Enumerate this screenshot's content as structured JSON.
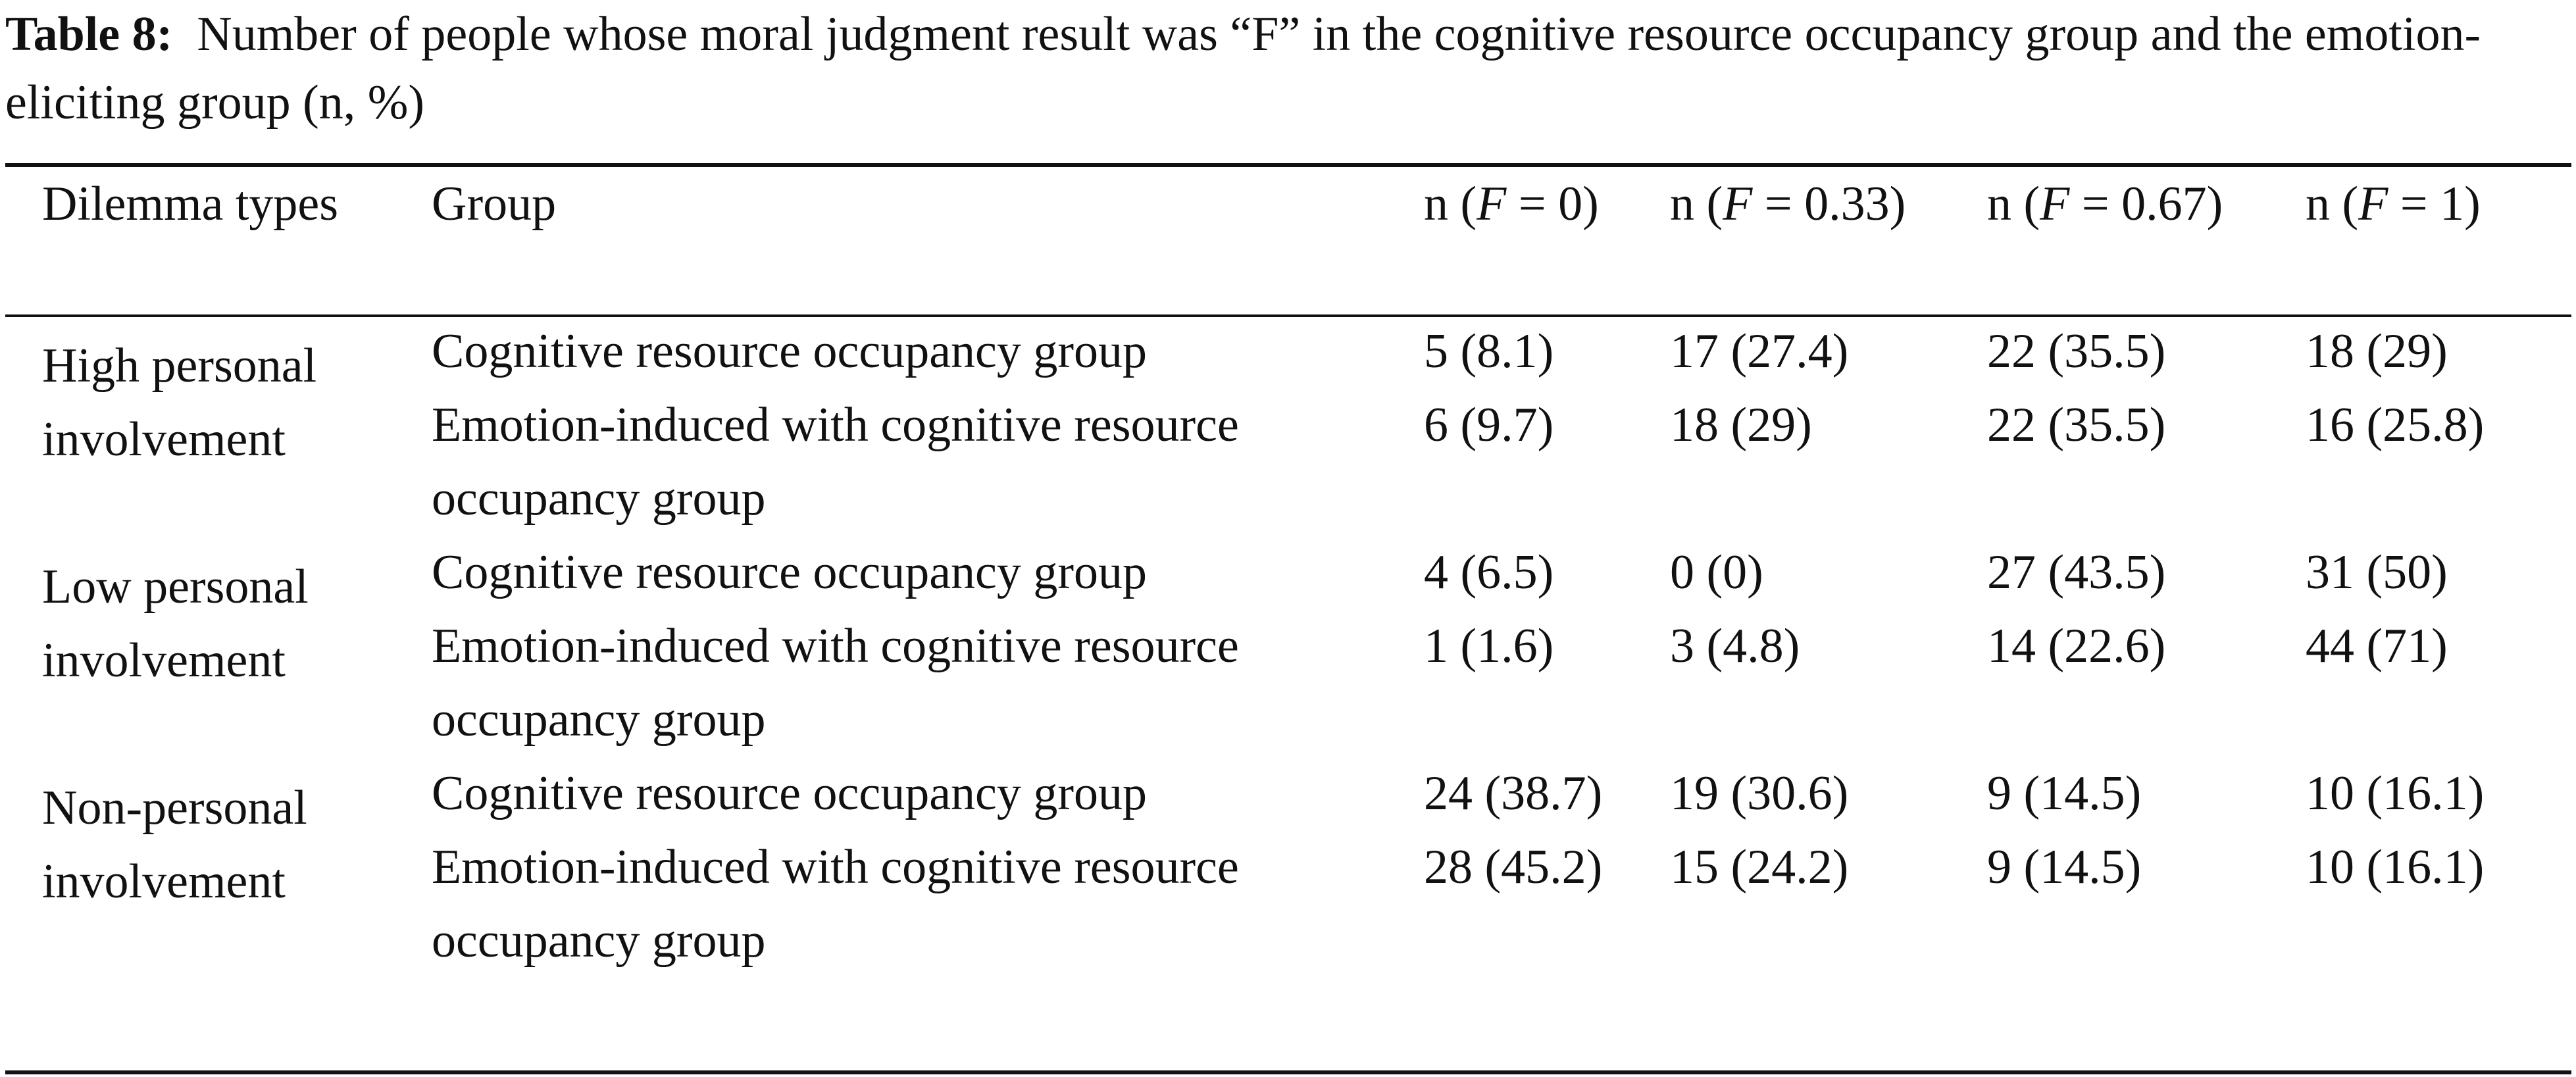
{
  "caption": {
    "label": "Table 8:",
    "text": "Number of people whose moral judgment result was “F” in the cognitive resource occupancy group and the emotion-eliciting group (n, %)"
  },
  "table": {
    "headers": {
      "dilemma": "Dilemma types",
      "group": "Group",
      "f0": "n (F = 0)",
      "f033": "n (F = 0.33)",
      "f067": "n (F = 0.67)",
      "f1": "n (F = 1)"
    },
    "sections": [
      {
        "dilemma": "High personal involvement",
        "rows": [
          {
            "group": "Cognitive resource occupancy group",
            "f0": "5 (8.1)",
            "f033": "17 (27.4)",
            "f067": "22 (35.5)",
            "f1": "18 (29)"
          },
          {
            "group": "Emotion-induced with cognitive resource occupancy group",
            "f0": "6 (9.7)",
            "f033": "18 (29)",
            "f067": "22 (35.5)",
            "f1": "16 (25.8)"
          }
        ]
      },
      {
        "dilemma": "Low personal involvement",
        "rows": [
          {
            "group": "Cognitive resource occupancy group",
            "f0": "4 (6.5)",
            "f033": "0 (0)",
            "f067": "27 (43.5)",
            "f1": "31 (50)"
          },
          {
            "group": "Emotion-induced with cognitive resource occupancy group",
            "f0": "1 (1.6)",
            "f033": "3 (4.8)",
            "f067": "14 (22.6)",
            "f1": "44 (71)"
          }
        ]
      },
      {
        "dilemma": "Non-personal involvement",
        "rows": [
          {
            "group": "Cognitive resource occupancy group",
            "f0": "24 (38.7)",
            "f033": "19 (30.6)",
            "f067": "9 (14.5)",
            "f1": "10 (16.1)"
          },
          {
            "group": "Emotion-induced with cognitive resource occupancy group",
            "f0": "28 (45.2)",
            "f033": "15 (24.2)",
            "f067": "9 (14.5)",
            "f1": "10 (16.1)"
          }
        ]
      }
    ]
  }
}
